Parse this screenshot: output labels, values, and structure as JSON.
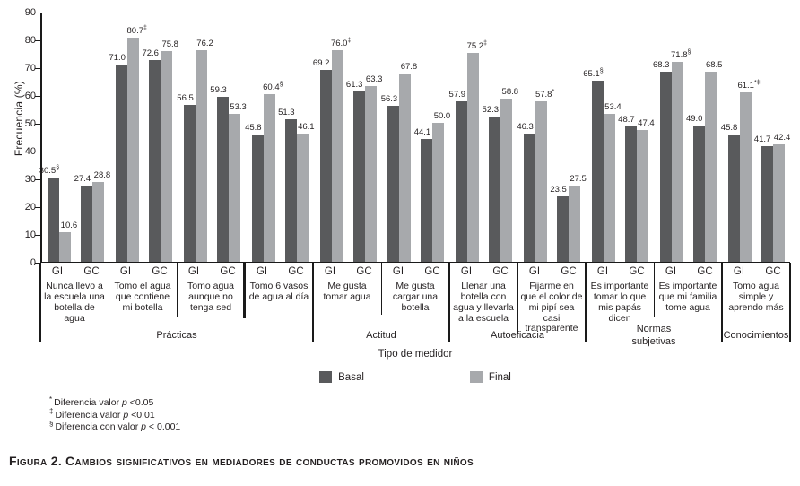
{
  "figure": {
    "caption_label": "Figura 2.",
    "caption_text": "Cambios significativos en mediadores de conductas promovidos en niños"
  },
  "footnotes": [
    {
      "symbol": "*",
      "before": "Diferencia valor ",
      "italic": "p",
      "after": " <0.05"
    },
    {
      "symbol": "‡",
      "before": "Diferencia valor ",
      "italic": "p",
      "after": " <0.01"
    },
    {
      "symbol": "§",
      "before": "Diferencia con valor ",
      "italic": "p",
      "after": " < 0.001"
    }
  ],
  "chart_data": {
    "type": "bar",
    "title": "",
    "ylabel": "Frecuencia (%)",
    "xlabel": "Tipo de medidor",
    "ylim": [
      0,
      90
    ],
    "yticks": [
      0,
      10,
      20,
      30,
      40,
      50,
      60,
      70,
      80,
      90
    ],
    "grid": false,
    "legend_position": "bottom",
    "colors": {
      "basal": "#595a5c",
      "final": "#a7a9ac"
    },
    "legend": [
      {
        "name": "Basal",
        "key": "basal"
      },
      {
        "name": "Final",
        "key": "final"
      }
    ],
    "sections": [
      {
        "label": "Prácticas",
        "span": 4
      },
      {
        "label": "Actitud",
        "span": 2
      },
      {
        "label": "Autoeficacia",
        "span": 2
      },
      {
        "label": "Normas\nsubjetivas",
        "span": 2
      },
      {
        "label": "Conocimientos",
        "span": 1
      }
    ],
    "categories": [
      {
        "label": "Nunca llevo a la escuela una botella de agua",
        "groups": [
          {
            "name": "GI",
            "basal": 30.5,
            "basal_note": "§",
            "final": 10.6
          },
          {
            "name": "GC",
            "basal": 27.4,
            "final": 28.8
          }
        ]
      },
      {
        "label": "Tomo el agua que contiene mi botella",
        "groups": [
          {
            "name": "GI",
            "basal": 71.0,
            "final": 80.7,
            "final_note": "‡"
          },
          {
            "name": "GC",
            "basal": 72.6,
            "final": 75.8
          }
        ]
      },
      {
        "label": "Tomo agua aunque no tenga sed",
        "groups": [
          {
            "name": "GI",
            "basal": 56.5,
            "final": 76.2
          },
          {
            "name": "GC",
            "basal": 59.3,
            "final": 53.3
          }
        ]
      },
      {
        "label": "Tomo 6 vasos de agua al día",
        "groups": [
          {
            "name": "GI",
            "basal": 45.8,
            "final": 60.4,
            "final_note": "§"
          },
          {
            "name": "GC",
            "basal": 51.3,
            "final": 46.1
          }
        ]
      },
      {
        "label": "Me gusta tomar agua",
        "groups": [
          {
            "name": "GI",
            "basal": 69.2,
            "final": 76.0,
            "final_note": "‡"
          },
          {
            "name": "GC",
            "basal": 61.3,
            "final": 63.3
          }
        ]
      },
      {
        "label": "Me gusta cargar una botella",
        "groups": [
          {
            "name": "GI",
            "basal": 56.3,
            "final": 67.8
          },
          {
            "name": "GC",
            "basal": 44.1,
            "final": 50.0
          }
        ]
      },
      {
        "label": "Llenar una botella con agua y llevarla a la escuela",
        "groups": [
          {
            "name": "GI",
            "basal": 57.9,
            "final": 75.2,
            "final_note": "‡"
          },
          {
            "name": "GC",
            "basal": 52.3,
            "final": 58.8
          }
        ]
      },
      {
        "label": "Fijarme en que el color de mi pipí sea casi transparente",
        "groups": [
          {
            "name": "GI",
            "basal": 46.3,
            "final": 57.8,
            "final_note": "*"
          },
          {
            "name": "GC",
            "basal": 23.5,
            "final": 27.5
          }
        ]
      },
      {
        "label": "Es importante tomar lo que mis papás dicen",
        "groups": [
          {
            "name": "GI",
            "basal": 65.1,
            "basal_note": "§",
            "final": 53.4
          },
          {
            "name": "GC",
            "basal": 48.7,
            "final": 47.4
          }
        ]
      },
      {
        "label": "Es importante que mi familia tome agua",
        "groups": [
          {
            "name": "GI",
            "basal": 68.3,
            "final": 71.8,
            "final_note": "§"
          },
          {
            "name": "GC",
            "basal": 49.0,
            "final": 68.5
          }
        ]
      },
      {
        "label": "Tomo agua simple y aprendo más",
        "groups": [
          {
            "name": "GI",
            "basal": 45.8,
            "final": 61.1,
            "final_note": "*‡"
          },
          {
            "name": "GC",
            "basal": 41.7,
            "final": 42.4
          }
        ]
      }
    ]
  }
}
